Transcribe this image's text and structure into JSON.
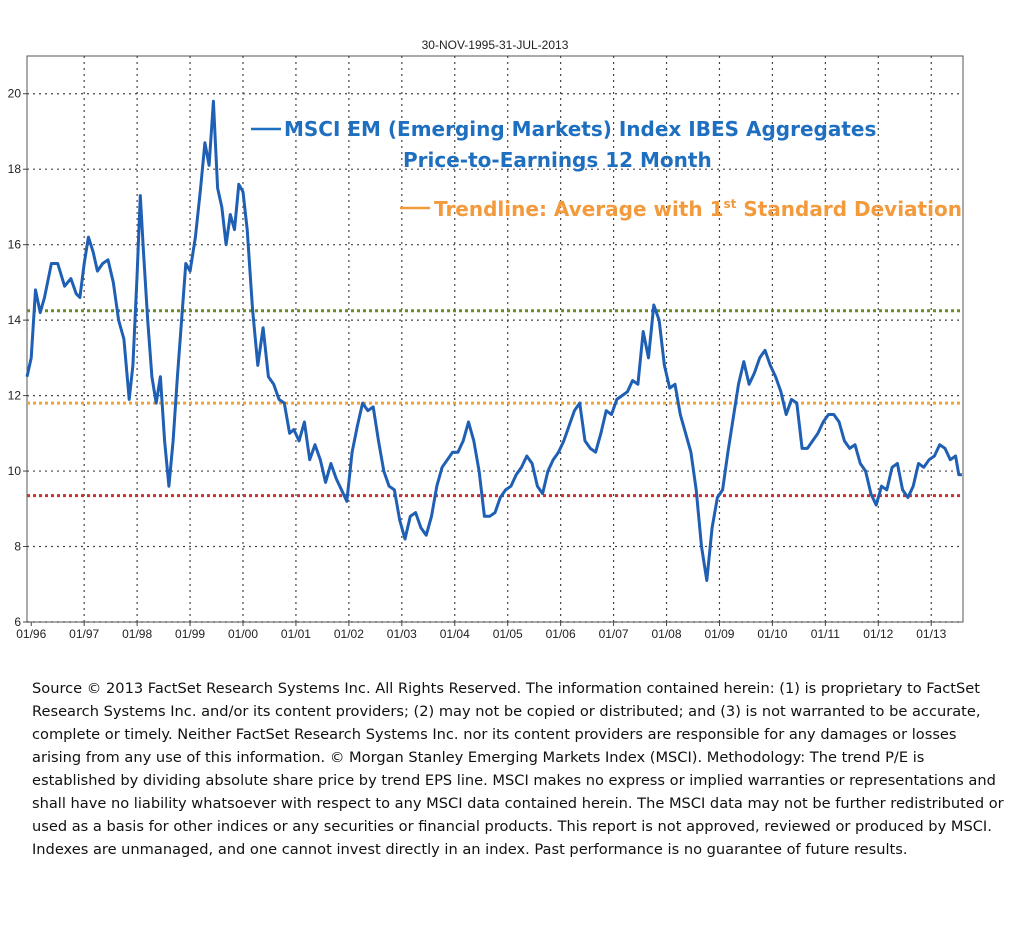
{
  "chart_data": {
    "type": "line",
    "title": "30-NOV-1995-31-JUL-2013",
    "xlabel": "",
    "ylabel": "",
    "ylim": [
      6,
      21
    ],
    "yticks": [
      6,
      8,
      10,
      12,
      14,
      16,
      18,
      20
    ],
    "xlim": [
      1995.92,
      2013.6
    ],
    "xticks": [
      {
        "label": "01/96",
        "value": 1996.0
      },
      {
        "label": "01/97",
        "value": 1997.0
      },
      {
        "label": "01/98",
        "value": 1998.0
      },
      {
        "label": "01/99",
        "value": 1999.0
      },
      {
        "label": "01/00",
        "value": 2000.0
      },
      {
        "label": "01/01",
        "value": 2001.0
      },
      {
        "label": "01/02",
        "value": 2002.0
      },
      {
        "label": "01/03",
        "value": 2003.0
      },
      {
        "label": "01/04",
        "value": 2004.0
      },
      {
        "label": "01/05",
        "value": 2005.0
      },
      {
        "label": "01/06",
        "value": 2006.0
      },
      {
        "label": "01/07",
        "value": 2007.0
      },
      {
        "label": "01/08",
        "value": 2008.0
      },
      {
        "label": "01/09",
        "value": 2009.0
      },
      {
        "label": "01/10",
        "value": 2010.0
      },
      {
        "label": "01/11",
        "value": 2011.0
      },
      {
        "label": "01/12",
        "value": 2012.0
      },
      {
        "label": "01/13",
        "value": 2013.0
      }
    ],
    "grid": true,
    "series": [
      {
        "name": "MSCI EM (Emerging Markets) Index IBES Aggregates Price-to-Earnings 12 Month",
        "color": "#1f5fb4",
        "points": [
          [
            1995.92,
            12.5
          ],
          [
            1996.0,
            13.0
          ],
          [
            1996.08,
            14.8
          ],
          [
            1996.17,
            14.2
          ],
          [
            1996.25,
            14.6
          ],
          [
            1996.38,
            15.5
          ],
          [
            1996.5,
            15.5
          ],
          [
            1996.63,
            14.9
          ],
          [
            1996.75,
            15.1
          ],
          [
            1996.85,
            14.7
          ],
          [
            1996.92,
            14.6
          ],
          [
            1997.0,
            15.5
          ],
          [
            1997.08,
            16.2
          ],
          [
            1997.17,
            15.8
          ],
          [
            1997.25,
            15.3
          ],
          [
            1997.35,
            15.5
          ],
          [
            1997.45,
            15.6
          ],
          [
            1997.55,
            15.0
          ],
          [
            1997.65,
            14.0
          ],
          [
            1997.75,
            13.5
          ],
          [
            1997.85,
            11.9
          ],
          [
            1997.92,
            12.8
          ],
          [
            1998.0,
            15.2
          ],
          [
            1998.06,
            17.3
          ],
          [
            1998.12,
            15.8
          ],
          [
            1998.2,
            14.0
          ],
          [
            1998.28,
            12.5
          ],
          [
            1998.36,
            11.8
          ],
          [
            1998.44,
            12.5
          ],
          [
            1998.52,
            10.8
          ],
          [
            1998.6,
            9.6
          ],
          [
            1998.68,
            10.8
          ],
          [
            1998.76,
            12.5
          ],
          [
            1998.84,
            14.0
          ],
          [
            1998.92,
            15.5
          ],
          [
            1999.0,
            15.3
          ],
          [
            1999.1,
            16.2
          ],
          [
            1999.2,
            17.5
          ],
          [
            1999.28,
            18.7
          ],
          [
            1999.36,
            18.1
          ],
          [
            1999.44,
            19.8
          ],
          [
            1999.52,
            17.5
          ],
          [
            1999.6,
            17.0
          ],
          [
            1999.68,
            16.0
          ],
          [
            1999.76,
            16.8
          ],
          [
            1999.84,
            16.4
          ],
          [
            1999.92,
            17.6
          ],
          [
            2000.0,
            17.4
          ],
          [
            2000.08,
            16.4
          ],
          [
            2000.18,
            14.3
          ],
          [
            2000.28,
            12.8
          ],
          [
            2000.38,
            13.8
          ],
          [
            2000.48,
            12.5
          ],
          [
            2000.58,
            12.3
          ],
          [
            2000.68,
            11.9
          ],
          [
            2000.78,
            11.8
          ],
          [
            2000.88,
            11.0
          ],
          [
            2000.96,
            11.1
          ],
          [
            2001.06,
            10.8
          ],
          [
            2001.16,
            11.3
          ],
          [
            2001.26,
            10.3
          ],
          [
            2001.36,
            10.7
          ],
          [
            2001.46,
            10.3
          ],
          [
            2001.56,
            9.7
          ],
          [
            2001.66,
            10.2
          ],
          [
            2001.76,
            9.8
          ],
          [
            2001.86,
            9.5
          ],
          [
            2001.96,
            9.2
          ],
          [
            2002.06,
            10.5
          ],
          [
            2002.16,
            11.2
          ],
          [
            2002.26,
            11.8
          ],
          [
            2002.36,
            11.6
          ],
          [
            2002.46,
            11.7
          ],
          [
            2002.56,
            10.8
          ],
          [
            2002.66,
            10.0
          ],
          [
            2002.76,
            9.6
          ],
          [
            2002.86,
            9.5
          ],
          [
            2002.96,
            8.7
          ],
          [
            2003.06,
            8.2
          ],
          [
            2003.16,
            8.8
          ],
          [
            2003.26,
            8.9
          ],
          [
            2003.36,
            8.5
          ],
          [
            2003.46,
            8.3
          ],
          [
            2003.56,
            8.8
          ],
          [
            2003.66,
            9.6
          ],
          [
            2003.76,
            10.1
          ],
          [
            2003.86,
            10.3
          ],
          [
            2003.96,
            10.5
          ],
          [
            2004.06,
            10.5
          ],
          [
            2004.16,
            10.8
          ],
          [
            2004.26,
            11.3
          ],
          [
            2004.36,
            10.8
          ],
          [
            2004.46,
            10.0
          ],
          [
            2004.56,
            8.8
          ],
          [
            2004.66,
            8.8
          ],
          [
            2004.76,
            8.9
          ],
          [
            2004.86,
            9.3
          ],
          [
            2004.96,
            9.5
          ],
          [
            2005.06,
            9.6
          ],
          [
            2005.16,
            9.9
          ],
          [
            2005.26,
            10.1
          ],
          [
            2005.36,
            10.4
          ],
          [
            2005.46,
            10.2
          ],
          [
            2005.56,
            9.6
          ],
          [
            2005.66,
            9.4
          ],
          [
            2005.76,
            10.0
          ],
          [
            2005.86,
            10.3
          ],
          [
            2005.96,
            10.5
          ],
          [
            2006.06,
            10.8
          ],
          [
            2006.16,
            11.2
          ],
          [
            2006.26,
            11.6
          ],
          [
            2006.36,
            11.8
          ],
          [
            2006.46,
            10.8
          ],
          [
            2006.56,
            10.6
          ],
          [
            2006.66,
            10.5
          ],
          [
            2006.76,
            11.0
          ],
          [
            2006.86,
            11.6
          ],
          [
            2006.96,
            11.5
          ],
          [
            2007.06,
            11.9
          ],
          [
            2007.16,
            12.0
          ],
          [
            2007.26,
            12.1
          ],
          [
            2007.36,
            12.4
          ],
          [
            2007.46,
            12.3
          ],
          [
            2007.56,
            13.7
          ],
          [
            2007.66,
            13.0
          ],
          [
            2007.76,
            14.4
          ],
          [
            2007.86,
            14.0
          ],
          [
            2007.96,
            12.8
          ],
          [
            2008.06,
            12.2
          ],
          [
            2008.16,
            12.3
          ],
          [
            2008.26,
            11.5
          ],
          [
            2008.36,
            11.0
          ],
          [
            2008.46,
            10.5
          ],
          [
            2008.56,
            9.5
          ],
          [
            2008.66,
            8.0
          ],
          [
            2008.76,
            7.1
          ],
          [
            2008.86,
            8.5
          ],
          [
            2008.96,
            9.3
          ],
          [
            2009.06,
            9.5
          ],
          [
            2009.16,
            10.5
          ],
          [
            2009.26,
            11.4
          ],
          [
            2009.36,
            12.3
          ],
          [
            2009.46,
            12.9
          ],
          [
            2009.56,
            12.3
          ],
          [
            2009.66,
            12.6
          ],
          [
            2009.76,
            13.0
          ],
          [
            2009.86,
            13.2
          ],
          [
            2009.96,
            12.8
          ],
          [
            2010.06,
            12.5
          ],
          [
            2010.16,
            12.1
          ],
          [
            2010.26,
            11.5
          ],
          [
            2010.36,
            11.9
          ],
          [
            2010.46,
            11.8
          ],
          [
            2010.56,
            10.6
          ],
          [
            2010.66,
            10.6
          ],
          [
            2010.76,
            10.8
          ],
          [
            2010.86,
            11.0
          ],
          [
            2010.96,
            11.3
          ],
          [
            2011.06,
            11.5
          ],
          [
            2011.16,
            11.5
          ],
          [
            2011.26,
            11.3
          ],
          [
            2011.36,
            10.8
          ],
          [
            2011.46,
            10.6
          ],
          [
            2011.56,
            10.7
          ],
          [
            2011.66,
            10.2
          ],
          [
            2011.76,
            10.0
          ],
          [
            2011.86,
            9.4
          ],
          [
            2011.96,
            9.1
          ],
          [
            2012.06,
            9.6
          ],
          [
            2012.16,
            9.5
          ],
          [
            2012.26,
            10.1
          ],
          [
            2012.36,
            10.2
          ],
          [
            2012.46,
            9.5
          ],
          [
            2012.56,
            9.3
          ],
          [
            2012.66,
            9.6
          ],
          [
            2012.76,
            10.2
          ],
          [
            2012.86,
            10.1
          ],
          [
            2012.96,
            10.3
          ],
          [
            2013.06,
            10.4
          ],
          [
            2013.16,
            10.7
          ],
          [
            2013.26,
            10.6
          ],
          [
            2013.36,
            10.3
          ],
          [
            2013.46,
            10.4
          ],
          [
            2013.52,
            9.9
          ],
          [
            2013.58,
            9.9
          ]
        ]
      }
    ],
    "reference_lines": [
      {
        "name": "upper",
        "value": 14.25,
        "color": "#6b8e23"
      },
      {
        "name": "average",
        "value": 11.8,
        "color": "#f5a030"
      },
      {
        "name": "lower",
        "value": 9.35,
        "color": "#d23030"
      }
    ]
  },
  "legend": {
    "line1_label": "MSCI EM (Emerging Markets) Index IBES Aggregates",
    "line2_label": "Price-to-Earnings  12 Month",
    "line1_color": "#1f6fc0",
    "trend_label_pre": "Trendline: Average with 1",
    "trend_label_sup": "st",
    "trend_label_post": " Standard Deviation",
    "trend_color": "#f39a3d"
  },
  "source_note": "Source © 2013 FactSet Research Systems Inc. All Rights Reserved.  The information contained herein:  (1) is proprietary to FactSet Research Systems Inc. and/or its content providers; (2) may not be copied or distributed; and (3) is not warranted to be accurate, complete or timely. Neither FactSet Research Systems Inc. nor its content providers are responsible for any damages or losses arising from any use of this information. © Morgan Stanley Emerging Markets Index (MSCI). Methodology: The trend P/E is established by dividing absolute share price by trend EPS line. MSCI makes no express or implied warranties or representations and shall have no liability whatsoever with respect to any MSCI data contained herein. The MSCI data may not be further redistributed or used as a basis for other indices or any securities or financial products. This report is not approved, reviewed  or produced by MSCI. Indexes are unmanaged, and one cannot invest directly in an index. Past performance is no guarantee of future results."
}
